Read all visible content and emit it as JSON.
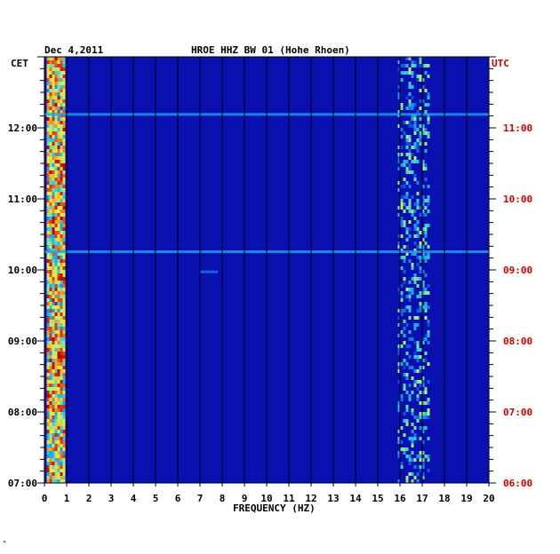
{
  "header": {
    "date": "Dec 4,2011",
    "station": "HROE HHZ BW 01 (Hohe Rhoen)"
  },
  "footer": {
    "mark": "ᴹ"
  },
  "colors": {
    "background": "#0a10b0",
    "left_label": "#000000",
    "right_label": "#cc0000",
    "gridline": "#000000",
    "colormap": [
      "#0a10b0",
      "#1660e8",
      "#22c6e6",
      "#bff070",
      "#f7e52e",
      "#e8561c",
      "#b40000"
    ]
  },
  "chart_data": {
    "type": "heatmap",
    "title": "HROE HHZ BW 01 (Hohe Rhoen)",
    "date": "Dec 4,2011",
    "xlabel": "FREQUENCY (HZ)",
    "xlim": [
      0,
      20
    ],
    "x_ticks": [
      "0",
      "1",
      "2",
      "3",
      "4",
      "5",
      "6",
      "7",
      "8",
      "9",
      "10",
      "11",
      "12",
      "13",
      "14",
      "15",
      "16",
      "17",
      "18",
      "19",
      "20"
    ],
    "left_axis": {
      "label": "CET",
      "range": [
        "07:00",
        "13:00"
      ],
      "ticks": [
        "12:00",
        "11:00",
        "10:00",
        "09:00",
        "08:00",
        "07:00"
      ]
    },
    "right_axis": {
      "label": "UTC",
      "range": [
        "06:00",
        "12:00"
      ],
      "ticks": [
        "11:00",
        "10:00",
        "09:00",
        "08:00",
        "07:00",
        "06:00"
      ]
    },
    "grid": true,
    "bands": [
      {
        "freq_range_hz": [
          0.1,
          0.9
        ],
        "intensity": "high",
        "time_span": "entire record"
      },
      {
        "freq_range_hz": [
          15.9,
          17.3
        ],
        "intensity": "medium",
        "time_span": "intermittent"
      }
    ],
    "events": [
      {
        "time_cet": "10:15",
        "freq_range_hz": [
          0,
          20
        ],
        "intensity": "medium"
      },
      {
        "time_cet": "12:11",
        "freq_range_hz": [
          0,
          20
        ],
        "intensity": "medium"
      },
      {
        "time_cet": "09:58",
        "freq_range_hz": [
          7.0,
          7.8
        ],
        "intensity": "low"
      }
    ]
  }
}
